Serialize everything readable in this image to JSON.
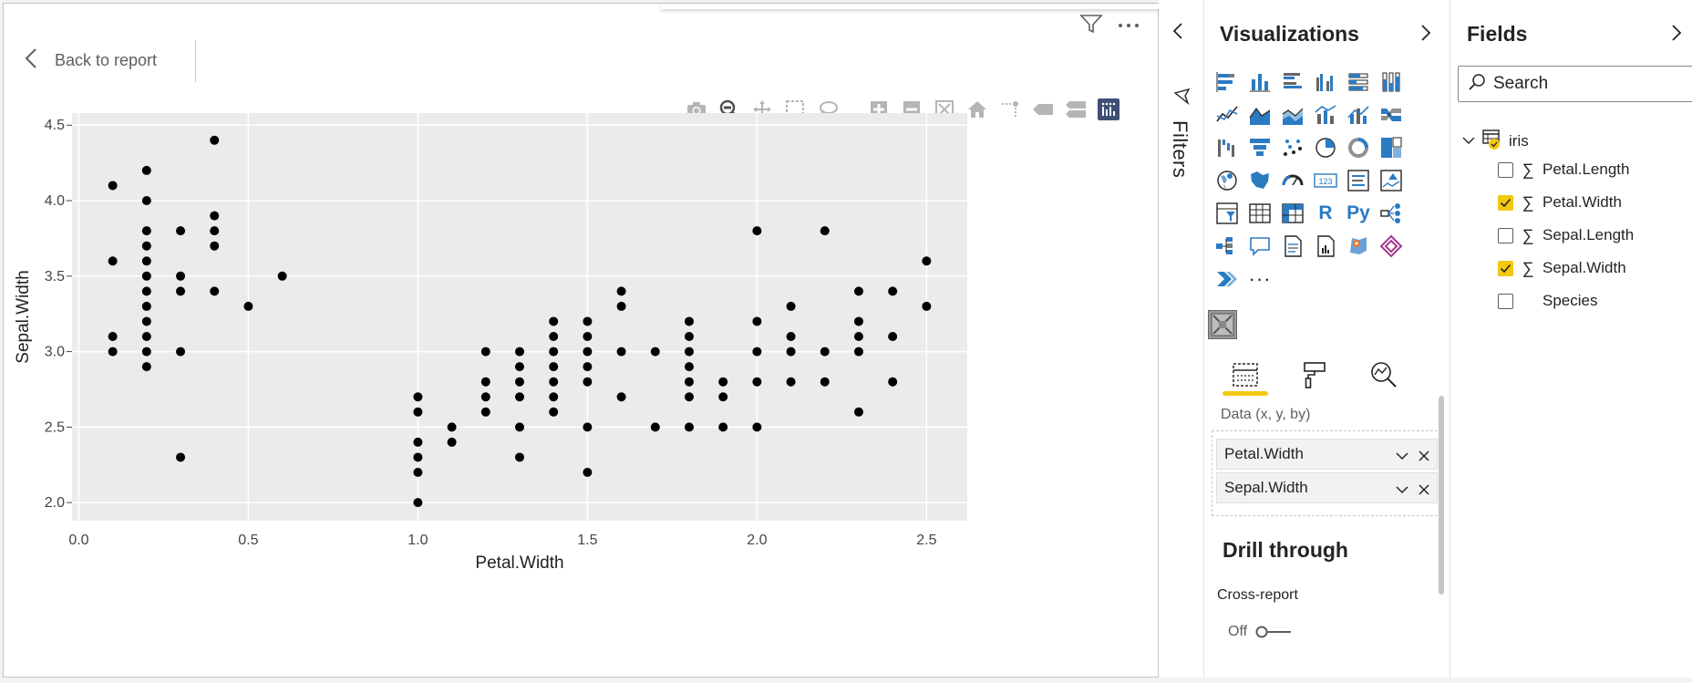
{
  "report": {
    "back_label": "Back to report"
  },
  "chart_data": {
    "type": "scatter",
    "xlabel": "Petal.Width",
    "ylabel": "Sepal.Width",
    "xlim": [
      -0.02,
      2.62
    ],
    "ylim": [
      1.88,
      4.58
    ],
    "xticks": [
      "0.0",
      "0.5",
      "1.0",
      "1.5",
      "2.0",
      "2.5"
    ],
    "xtick_values": [
      0,
      0.5,
      1.0,
      1.5,
      2.0,
      2.5
    ],
    "yticks": [
      "2.0",
      "2.5",
      "3.0",
      "3.5",
      "4.0",
      "4.5"
    ],
    "ytick_values": [
      2.0,
      2.5,
      3.0,
      3.5,
      4.0,
      4.5
    ],
    "grid": true,
    "points": [
      [
        0.1,
        4.1
      ],
      [
        0.1,
        3.6
      ],
      [
        0.1,
        3.1
      ],
      [
        0.1,
        3.0
      ],
      [
        0.2,
        4.2
      ],
      [
        0.2,
        4.0
      ],
      [
        0.2,
        3.8
      ],
      [
        0.2,
        3.7
      ],
      [
        0.2,
        3.6
      ],
      [
        0.2,
        3.5
      ],
      [
        0.2,
        3.4
      ],
      [
        0.2,
        3.3
      ],
      [
        0.2,
        3.2
      ],
      [
        0.2,
        3.1
      ],
      [
        0.2,
        3.0
      ],
      [
        0.2,
        2.9
      ],
      [
        0.3,
        3.8
      ],
      [
        0.3,
        3.5
      ],
      [
        0.3,
        3.4
      ],
      [
        0.3,
        3.0
      ],
      [
        0.3,
        2.3
      ],
      [
        0.4,
        4.4
      ],
      [
        0.4,
        3.9
      ],
      [
        0.4,
        3.8
      ],
      [
        0.4,
        3.7
      ],
      [
        0.4,
        3.4
      ],
      [
        0.5,
        3.3
      ],
      [
        0.6,
        3.5
      ],
      [
        1.0,
        2.7
      ],
      [
        1.0,
        2.6
      ],
      [
        1.0,
        2.4
      ],
      [
        1.0,
        2.3
      ],
      [
        1.0,
        2.2
      ],
      [
        1.0,
        2.0
      ],
      [
        1.1,
        2.5
      ],
      [
        1.1,
        2.4
      ],
      [
        1.2,
        3.0
      ],
      [
        1.2,
        2.8
      ],
      [
        1.2,
        2.7
      ],
      [
        1.2,
        2.6
      ],
      [
        1.3,
        3.0
      ],
      [
        1.3,
        2.9
      ],
      [
        1.3,
        2.8
      ],
      [
        1.3,
        2.7
      ],
      [
        1.3,
        2.5
      ],
      [
        1.3,
        2.3
      ],
      [
        1.4,
        3.2
      ],
      [
        1.4,
        3.1
      ],
      [
        1.4,
        3.0
      ],
      [
        1.4,
        2.9
      ],
      [
        1.4,
        2.8
      ],
      [
        1.4,
        2.7
      ],
      [
        1.4,
        2.6
      ],
      [
        1.5,
        3.2
      ],
      [
        1.5,
        3.1
      ],
      [
        1.5,
        3.0
      ],
      [
        1.5,
        2.9
      ],
      [
        1.5,
        2.8
      ],
      [
        1.5,
        2.5
      ],
      [
        1.5,
        2.2
      ],
      [
        1.6,
        3.4
      ],
      [
        1.6,
        3.3
      ],
      [
        1.6,
        3.0
      ],
      [
        1.6,
        2.7
      ],
      [
        1.7,
        3.0
      ],
      [
        1.7,
        2.5
      ],
      [
        1.8,
        3.2
      ],
      [
        1.8,
        3.1
      ],
      [
        1.8,
        3.0
      ],
      [
        1.8,
        2.9
      ],
      [
        1.8,
        2.8
      ],
      [
        1.8,
        2.7
      ],
      [
        1.8,
        2.5
      ],
      [
        1.9,
        2.8
      ],
      [
        1.9,
        2.7
      ],
      [
        1.9,
        2.5
      ],
      [
        2.0,
        3.8
      ],
      [
        2.0,
        3.2
      ],
      [
        2.0,
        3.0
      ],
      [
        2.0,
        2.8
      ],
      [
        2.0,
        2.5
      ],
      [
        2.1,
        3.3
      ],
      [
        2.1,
        3.1
      ],
      [
        2.1,
        3.0
      ],
      [
        2.1,
        2.8
      ],
      [
        2.2,
        3.8
      ],
      [
        2.2,
        3.0
      ],
      [
        2.2,
        2.8
      ],
      [
        2.3,
        3.4
      ],
      [
        2.3,
        3.2
      ],
      [
        2.3,
        3.1
      ],
      [
        2.3,
        3.0
      ],
      [
        2.3,
        2.6
      ],
      [
        2.4,
        3.4
      ],
      [
        2.4,
        3.1
      ],
      [
        2.4,
        2.8
      ],
      [
        2.5,
        3.6
      ],
      [
        2.5,
        3.3
      ]
    ]
  },
  "filters": {
    "label": "Filters"
  },
  "visualizations": {
    "title": "Visualizations",
    "icons": [
      "stacked-bar-chart",
      "stacked-column-chart",
      "clustered-bar-chart",
      "clustered-column-chart",
      "100-stacked-bar-chart",
      "100-stacked-column-chart",
      "line-chart",
      "area-chart",
      "stacked-area-chart",
      "line-clustered-column-chart",
      "line-stacked-column-chart",
      "ribbon-chart",
      "waterfall-chart",
      "funnel-chart",
      "scatter-chart",
      "pie-chart",
      "donut-chart",
      "treemap",
      "map",
      "filled-map",
      "gauge",
      "card",
      "multi-row-card",
      "kpi",
      "slicer",
      "table",
      "matrix",
      "r-visual",
      "python-visual",
      "key-influencers",
      "decomposition-tree",
      "qa-visual",
      "smart-narrative",
      "paginated-report",
      "azure-map",
      "power-apps",
      "power-automate",
      "more-visuals"
    ],
    "r_label": "R",
    "py_label": "Py",
    "card_label": "123",
    "more_label": "···",
    "data_label": "Data (x, y, by)",
    "wells": [
      "Petal.Width",
      "Sepal.Width"
    ],
    "drill_title": "Drill through",
    "cross_report_label": "Cross-report",
    "toggle_label": "Off"
  },
  "fields": {
    "title": "Fields",
    "search_placeholder": "Search",
    "table_name": "iris",
    "items": [
      {
        "name": "Petal.Length",
        "checked": false,
        "sigma": true
      },
      {
        "name": "Petal.Width",
        "checked": true,
        "sigma": true
      },
      {
        "name": "Sepal.Length",
        "checked": false,
        "sigma": true
      },
      {
        "name": "Sepal.Width",
        "checked": true,
        "sigma": true
      },
      {
        "name": "Species",
        "checked": false,
        "sigma": false
      }
    ]
  },
  "colors": {
    "accent": "#f2c811",
    "plot_bg": "#ebebeb",
    "icon_blue": "#2b7bc3",
    "point": "#000000"
  }
}
